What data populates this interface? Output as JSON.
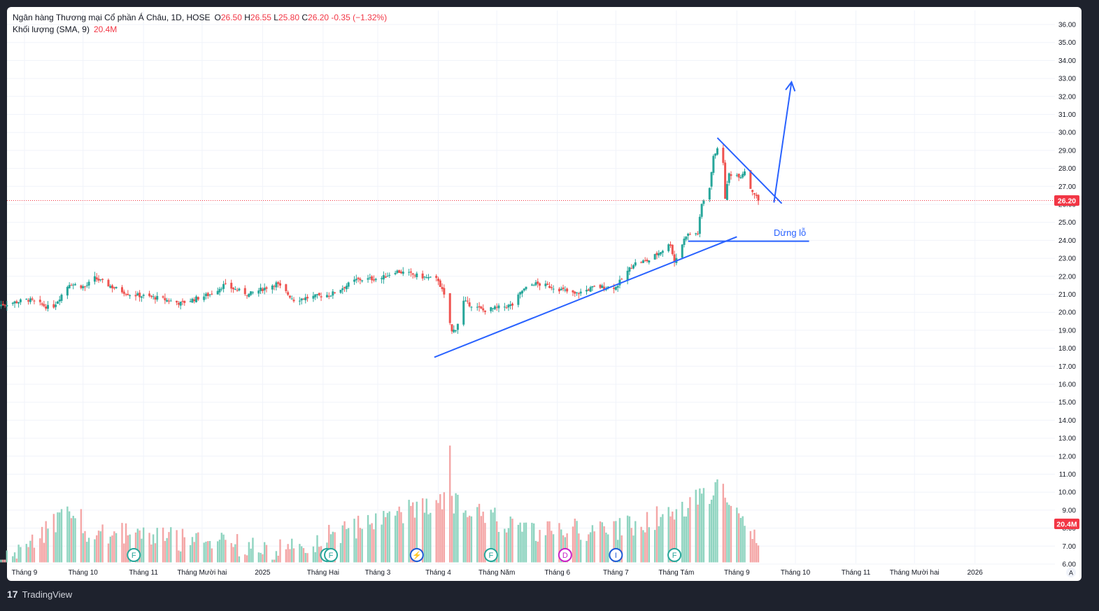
{
  "legend": {
    "symbol_line": "Ngân hàng Thương mại Cổ phần Á Châu, 1D, HOSE",
    "open_label": "O",
    "open": "26.50",
    "high_label": "H",
    "high": "26.55",
    "low_label": "L",
    "low": "25.80",
    "close_label": "C",
    "close": "26.20",
    "change": "-0.35 (−1.32%)",
    "volume_label": "Khối lượng (SMA, 9)",
    "volume_value": "20.4M"
  },
  "price_badge": "26.20",
  "volume_badge": "20.4M",
  "annotation_stop": "Dừng lỗ",
  "corner_label": "A",
  "footer": {
    "brand": "TradingView"
  },
  "colors": {
    "up": "#26a69a",
    "down": "#ef5350",
    "vol_up": "#8fd4c0",
    "vol_down": "#f4a6a6",
    "drawing": "#2962ff",
    "badge": "#f23645"
  },
  "events": [
    {
      "letter": "F",
      "color": "#26a69a",
      "date": "2024-10-27"
    },
    {
      "letter": "F",
      "color": "#26a69a",
      "date": "2025-02-03"
    },
    {
      "letter": "F",
      "color": "#26a69a",
      "date": "2025-02-05"
    },
    {
      "letter": "⚡",
      "color": "#1e5bd6",
      "date": "2025-03-21"
    },
    {
      "letter": "F",
      "color": "#26a69a",
      "date": "2025-04-28"
    },
    {
      "letter": "D",
      "color": "#c722c7",
      "date": "2025-06-05"
    },
    {
      "letter": "I",
      "color": "#1e5bd6",
      "date": "2025-07-01"
    },
    {
      "letter": "F",
      "color": "#26a69a",
      "date": "2025-07-31"
    }
  ],
  "chart_data": {
    "type": "candlestick",
    "symbol": "Ngân hàng Thương mại Cổ phần Á Châu, 1D, HOSE",
    "y_axis": {
      "ticks": [
        6.0,
        7.0,
        8.0,
        9.0,
        10.0,
        11.0,
        12.0,
        13.0,
        14.0,
        15.0,
        16.0,
        17.0,
        18.0,
        19.0,
        20.0,
        21.0,
        22.0,
        23.0,
        24.0,
        25.0,
        26.0,
        27.0,
        28.0,
        29.0,
        30.0,
        31.0,
        32.0,
        33.0,
        34.0,
        35.0,
        36.0
      ]
    },
    "x_axis": {
      "labels": [
        "Tháng 9",
        "Tháng 10",
        "Tháng 11",
        "Tháng Mười hai",
        "2025",
        "Tháng Hai",
        "Tháng 3",
        "Tháng 4",
        "Tháng Năm",
        "Tháng 6",
        "Tháng 7",
        "Tháng Tám",
        "Tháng 9",
        "Tháng 10",
        "Tháng 11",
        "Tháng Mười hai",
        "2026"
      ],
      "label_dates": [
        "2024-09-01",
        "2024-10-01",
        "2024-11-01",
        "2024-12-01",
        "2025-01-01",
        "2025-02-01",
        "2025-03-01",
        "2025-04-01",
        "2025-05-01",
        "2025-06-01",
        "2025-07-01",
        "2025-08-01",
        "2025-09-01",
        "2025-10-01",
        "2025-11-01",
        "2025-12-01",
        "2026-01-01"
      ]
    },
    "price_anchors": [
      {
        "date": "2024-08-19",
        "close": 20.4
      },
      {
        "date": "2024-09-03",
        "close": 20.7
      },
      {
        "date": "2024-09-15",
        "close": 20.2
      },
      {
        "date": "2024-09-24",
        "close": 21.6
      },
      {
        "date": "2024-10-02",
        "close": 21.4
      },
      {
        "date": "2024-10-07",
        "close": 21.9
      },
      {
        "date": "2024-10-16",
        "close": 21.4
      },
      {
        "date": "2024-10-25",
        "close": 21.0
      },
      {
        "date": "2024-11-08",
        "close": 20.8
      },
      {
        "date": "2024-11-20",
        "close": 20.5
      },
      {
        "date": "2024-12-05",
        "close": 21.0
      },
      {
        "date": "2024-12-12",
        "close": 21.5
      },
      {
        "date": "2024-12-25",
        "close": 21.0
      },
      {
        "date": "2025-01-08",
        "close": 21.6
      },
      {
        "date": "2025-01-17",
        "close": 20.7
      },
      {
        "date": "2025-02-05",
        "close": 21.0
      },
      {
        "date": "2025-02-18",
        "close": 21.8
      },
      {
        "date": "2025-03-03",
        "close": 21.9
      },
      {
        "date": "2025-03-10",
        "close": 22.3
      },
      {
        "date": "2025-03-27",
        "close": 21.9
      },
      {
        "date": "2025-04-01",
        "close": 21.8
      },
      {
        "date": "2025-04-04",
        "close": 20.9
      },
      {
        "date": "2025-04-08",
        "close": 18.9
      },
      {
        "date": "2025-04-10",
        "close": 19.1
      },
      {
        "date": "2025-04-11",
        "close": 19.4
      },
      {
        "date": "2025-04-14",
        "close": 20.6
      },
      {
        "date": "2025-04-24",
        "close": 20.1
      },
      {
        "date": "2025-05-09",
        "close": 20.4
      },
      {
        "date": "2025-05-14",
        "close": 21.2
      },
      {
        "date": "2025-05-20",
        "close": 21.6
      },
      {
        "date": "2025-05-30",
        "close": 21.4
      },
      {
        "date": "2025-06-10",
        "close": 21.0
      },
      {
        "date": "2025-06-20",
        "close": 21.4
      },
      {
        "date": "2025-07-01",
        "close": 21.4
      },
      {
        "date": "2025-07-10",
        "close": 22.7
      },
      {
        "date": "2025-07-18",
        "close": 22.9
      },
      {
        "date": "2025-07-29",
        "close": 23.8
      },
      {
        "date": "2025-07-31",
        "close": 22.8
      },
      {
        "date": "2025-08-06",
        "close": 24.3
      },
      {
        "date": "2025-08-12",
        "close": 24.4
      },
      {
        "date": "2025-08-14",
        "close": 26.0
      },
      {
        "date": "2025-08-18",
        "close": 27.0
      },
      {
        "date": "2025-08-20",
        "close": 28.6
      },
      {
        "date": "2025-08-22",
        "close": 29.2
      },
      {
        "date": "2025-08-25",
        "close": 28.2
      },
      {
        "date": "2025-08-26",
        "close": 26.4
      },
      {
        "date": "2025-08-28",
        "close": 27.7
      },
      {
        "date": "2025-09-03",
        "close": 27.6
      },
      {
        "date": "2025-09-05",
        "close": 27.9
      },
      {
        "date": "2025-09-08",
        "close": 26.9
      },
      {
        "date": "2025-09-10",
        "close": 26.6
      },
      {
        "date": "2025-09-12",
        "close": 26.2
      }
    ],
    "volume_anchors_millions": [
      {
        "date": "2024-08-19",
        "value": 6.5
      },
      {
        "date": "2024-09-27",
        "value": 9.6
      },
      {
        "date": "2024-10-03",
        "value": 8.4
      },
      {
        "date": "2024-10-24",
        "value": 8.2
      },
      {
        "date": "2025-01-13",
        "value": 7.3
      },
      {
        "date": "2025-04-04",
        "value": 10.2
      },
      {
        "date": "2025-04-07",
        "value": 13.7
      },
      {
        "date": "2025-04-08",
        "value": 10.7
      },
      {
        "date": "2025-04-09",
        "value": 9.9
      },
      {
        "date": "2025-05-16",
        "value": 8.4
      },
      {
        "date": "2025-07-04",
        "value": 8.5
      },
      {
        "date": "2025-08-05",
        "value": 9.6
      },
      {
        "date": "2025-08-12",
        "value": 10.5
      },
      {
        "date": "2025-08-20",
        "value": 10.5
      },
      {
        "date": "2025-08-21",
        "value": 10.9
      },
      {
        "date": "2025-08-25",
        "value": 10.4
      },
      {
        "date": "2025-09-12",
        "value": 8.2
      }
    ],
    "last": {
      "open": 26.5,
      "high": 26.55,
      "low": 25.8,
      "close": 26.2,
      "change": -0.35,
      "change_pct": -1.32,
      "volume_sma9": "20.4M"
    },
    "drawings": [
      {
        "kind": "trendline",
        "from": {
          "date": "2025-03-30",
          "price": 17.5
        },
        "to": {
          "date": "2025-09-01",
          "price": 24.2
        }
      },
      {
        "kind": "horizontal",
        "from": {
          "date": "2025-08-07",
          "price": 23.95
        },
        "to": {
          "date": "2025-10-08",
          "price": 23.95
        },
        "label": "Dừng lỗ"
      },
      {
        "kind": "trendline",
        "from": {
          "date": "2025-08-22",
          "price": 29.7
        },
        "to": {
          "date": "2025-09-24",
          "price": 26.05
        }
      },
      {
        "kind": "arrow",
        "from": {
          "date": "2025-09-20",
          "price": 26.1
        },
        "to": {
          "date": "2025-09-29",
          "price": 32.8
        }
      }
    ],
    "grid": true
  }
}
